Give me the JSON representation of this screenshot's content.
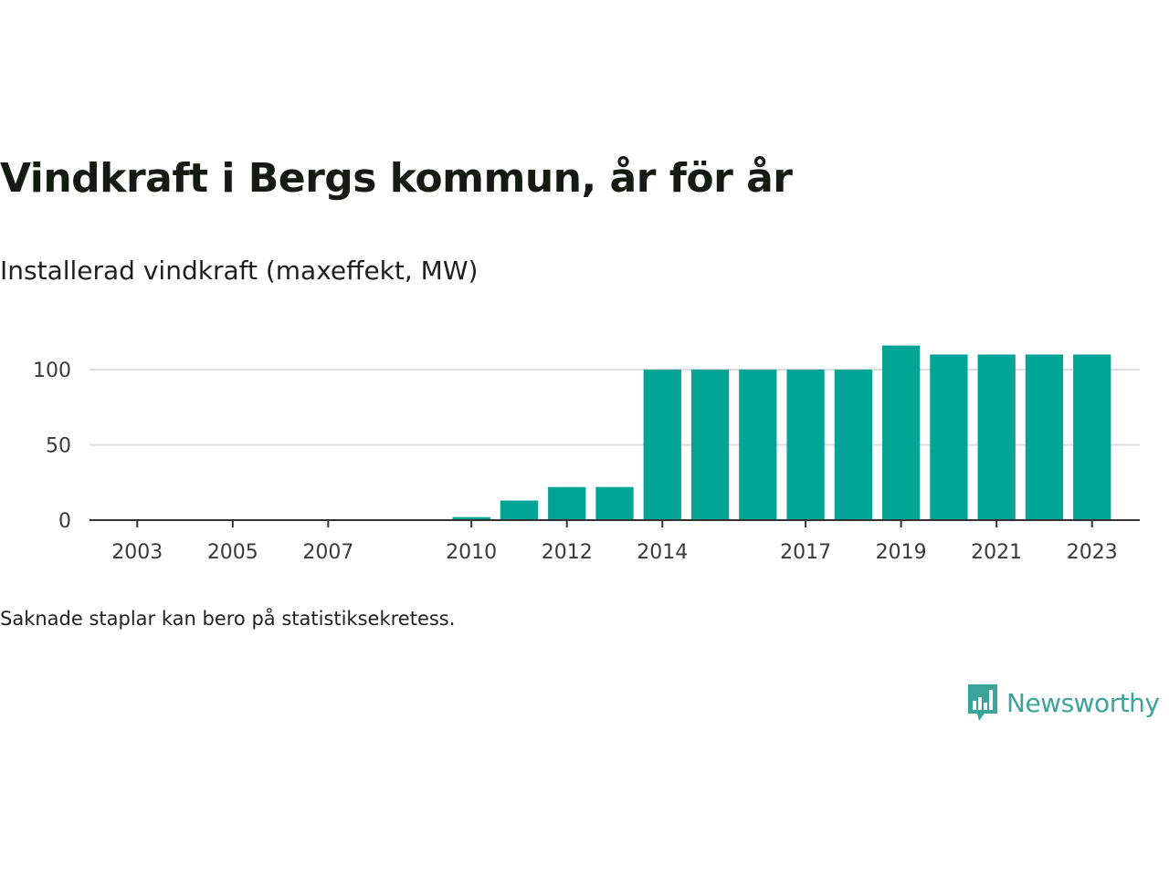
{
  "header": {
    "title": "Vindkraft i Bergs kommun, år för år",
    "subtitle": "Installerad vindkraft (maxeffekt, MW)"
  },
  "footer": {
    "note": "Saknade staplar kan bero på statistiksekretess.",
    "brand": "Newsworthy"
  },
  "colors": {
    "bar": "#00a596",
    "grid": "#dddddd",
    "axis": "#333333",
    "brand": "#3aa39a"
  },
  "chart_data": {
    "type": "bar",
    "categories": [
      "2010",
      "2011",
      "2012",
      "2013",
      "2014",
      "2015",
      "2016",
      "2017",
      "2018",
      "2019",
      "2020",
      "2021",
      "2022",
      "2023"
    ],
    "values": [
      2,
      13,
      22,
      22,
      100,
      100,
      100,
      100,
      100,
      116,
      110,
      110,
      110,
      110
    ],
    "x_range": [
      2002,
      2024
    ],
    "x_ticks": [
      "2003",
      "2005",
      "2007",
      "2010",
      "2012",
      "2014",
      "2017",
      "2019",
      "2021",
      "2023"
    ],
    "y_ticks": [
      "0",
      "50",
      "100"
    ],
    "ylim": [
      0,
      120
    ],
    "grid": true
  }
}
